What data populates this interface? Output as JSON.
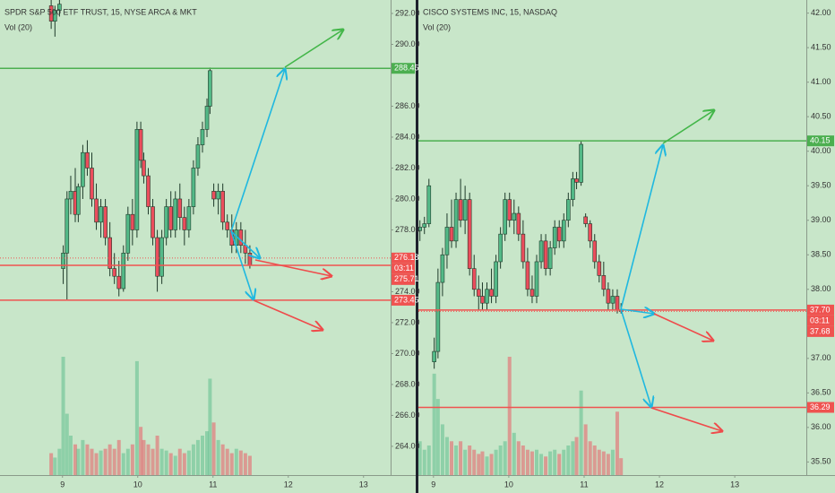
{
  "chart_data": [
    {
      "type": "candlestick",
      "title": "SPDR S&P 500 ETF TRUST, 15, NYSE ARCA & MKT",
      "subtitle": "Vol (20)",
      "x": [
        8.85,
        8.9,
        8.96,
        9.01,
        9.06,
        9.11,
        9.17,
        9.21,
        9.27,
        9.33,
        9.39,
        9.45,
        9.51,
        9.57,
        9.63,
        9.69,
        9.75,
        9.81,
        9.87,
        9.93,
        9.99,
        10.04,
        10.08,
        10.14,
        10.2,
        10.26,
        10.32,
        10.38,
        10.44,
        10.5,
        10.56,
        10.62,
        10.68,
        10.74,
        10.8,
        10.86,
        10.92,
        10.96,
        11.01,
        11.07,
        11.13,
        11.19,
        11.25,
        11.31,
        11.37,
        11.43,
        11.49
      ],
      "open": [
        292.5,
        291.5,
        292.2,
        275.5,
        276.5,
        280,
        280.5,
        279,
        280.8,
        283,
        282,
        280,
        278.5,
        279.5,
        277.5,
        275.5,
        275,
        274.2,
        276.5,
        279,
        278,
        284.5,
        282.5,
        281.5,
        279.5,
        277.5,
        275,
        277.5,
        279.5,
        278,
        280,
        278.8,
        278,
        279.5,
        282,
        283.5,
        284.5,
        286,
        280.5,
        280,
        280.5,
        278.5,
        278,
        277,
        278,
        277,
        276.5
      ],
      "high": [
        293,
        292.5,
        293,
        277,
        280.5,
        281.5,
        282,
        281,
        283.5,
        283.8,
        283,
        281,
        280,
        280,
        278.5,
        276.5,
        276,
        277,
        279.5,
        280,
        285,
        285,
        283,
        282,
        280,
        278,
        278,
        280,
        280.5,
        280.5,
        281,
        279.5,
        280,
        282.5,
        284,
        285,
        286.5,
        288.5,
        281,
        281,
        281,
        279,
        279,
        278.5,
        278.5,
        278,
        277
      ],
      "low": [
        291,
        290.5,
        291.8,
        274.5,
        273.5,
        279,
        278.5,
        278.5,
        280,
        281.5,
        279.5,
        278,
        277.5,
        277,
        275,
        274.5,
        273.7,
        274,
        276,
        277,
        277.5,
        282,
        281,
        279,
        277,
        274,
        274.5,
        277,
        277.5,
        277.5,
        278,
        277,
        277.5,
        279,
        281.5,
        283,
        284,
        285.5,
        279.5,
        279,
        278,
        277.5,
        276.5,
        276.5,
        276.5,
        275.8,
        275.5
      ],
      "close": [
        291.5,
        292.2,
        292.6,
        276.5,
        280,
        280.5,
        279,
        280.8,
        283,
        282,
        280,
        278.5,
        279.5,
        277.5,
        275.5,
        275,
        274.2,
        276.5,
        279,
        278,
        284.5,
        282.5,
        281.5,
        279.5,
        277.5,
        275,
        277.5,
        279.5,
        278,
        280,
        278.8,
        278,
        279.5,
        282,
        283.5,
        284.5,
        286,
        288.3,
        280,
        280.5,
        278.5,
        278,
        277,
        278,
        277,
        276.5,
        275.7
      ],
      "volume": [
        25,
        20,
        30,
        135,
        70,
        45,
        35,
        30,
        40,
        35,
        30,
        25,
        28,
        30,
        35,
        30,
        40,
        25,
        30,
        35,
        130,
        55,
        40,
        35,
        30,
        45,
        30,
        28,
        25,
        22,
        30,
        25,
        28,
        35,
        40,
        45,
        50,
        110,
        60,
        40,
        35,
        30,
        25,
        30,
        28,
        25,
        22
      ],
      "xlim": [
        8.17,
        13.36
      ],
      "xticks": [
        9,
        10,
        11,
        12,
        13
      ],
      "ylim": [
        262.14,
        292.87
      ],
      "yticks": [
        {
          "value": 264,
          "label": "264.00"
        },
        {
          "value": 266,
          "label": "266.00"
        },
        {
          "value": 268,
          "label": "268.00"
        },
        {
          "value": 270,
          "label": "270.00"
        },
        {
          "value": 272,
          "label": "272.00"
        },
        {
          "value": 274,
          "label": "274.00"
        },
        {
          "value": 278,
          "label": "278.00"
        },
        {
          "value": 280,
          "label": "280.00"
        },
        {
          "value": 282,
          "label": "282.00"
        },
        {
          "value": 284,
          "label": "284.00"
        },
        {
          "value": 286,
          "label": "286.00"
        },
        {
          "value": 290,
          "label": "290.00"
        },
        {
          "value": 292,
          "label": "292.00"
        }
      ],
      "levels": [
        {
          "value": 288.45,
          "label": "288.45",
          "color": "#4caf50",
          "style": "solid"
        },
        {
          "value": 276.18,
          "label": "276.18",
          "color": "#ef5350",
          "style": "dotted"
        },
        {
          "value": 275.71,
          "label": "275.71",
          "color": "#ef5350",
          "style": "solid"
        },
        {
          "value": 273.45,
          "label": "273.45",
          "color": "#ef5350",
          "style": "solid"
        }
      ],
      "countdown": "03:11",
      "up_color": "#53b987",
      "down_color": "#eb4d5c"
    },
    {
      "type": "candlestick",
      "title": "CISCO SYSTEMS INC, 15, NASDAQ",
      "subtitle": "Vol (20)",
      "x": [
        8.82,
        8.88,
        8.94,
        9.01,
        9.06,
        9.12,
        9.18,
        9.24,
        9.3,
        9.36,
        9.42,
        9.48,
        9.54,
        9.6,
        9.65,
        9.71,
        9.77,
        9.83,
        9.89,
        9.95,
        10.01,
        10.07,
        10.13,
        10.19,
        10.25,
        10.31,
        10.37,
        10.43,
        10.49,
        10.55,
        10.61,
        10.67,
        10.73,
        10.79,
        10.85,
        10.9,
        10.96,
        11.02,
        11.08,
        11.14,
        11.2,
        11.26,
        11.32,
        11.38,
        11.44,
        11.49
      ],
      "open": [
        38.85,
        38.9,
        38.95,
        36.95,
        37.1,
        38.1,
        38.5,
        38.9,
        38.7,
        39.3,
        39.0,
        39.3,
        38.3,
        38.0,
        37.9,
        37.8,
        38.0,
        37.9,
        38.4,
        38.8,
        39.3,
        39.0,
        39.1,
        38.8,
        38.4,
        38.0,
        37.9,
        38.4,
        38.7,
        38.3,
        38.6,
        38.9,
        38.7,
        39.0,
        39.3,
        39.6,
        39.55,
        39.05,
        38.95,
        38.7,
        38.4,
        38.2,
        38.0,
        37.8,
        37.9,
        37.7
      ],
      "high": [
        39.0,
        39.05,
        39.6,
        37.3,
        38.3,
        38.6,
        39.1,
        39.3,
        39.4,
        39.6,
        39.5,
        39.4,
        38.5,
        38.2,
        38.1,
        38.1,
        38.3,
        38.5,
        38.9,
        39.4,
        39.4,
        39.3,
        39.2,
        39.0,
        38.6,
        38.2,
        38.5,
        38.8,
        38.8,
        38.7,
        39.0,
        39.0,
        39.1,
        39.4,
        39.7,
        39.7,
        40.15,
        39.1,
        39.0,
        38.8,
        38.5,
        38.4,
        38.1,
        38.0,
        38.0,
        37.8
      ],
      "low": [
        38.7,
        38.8,
        38.9,
        36.85,
        37.0,
        37.9,
        38.3,
        38.6,
        38.6,
        38.9,
        38.8,
        38.2,
        37.9,
        37.7,
        37.7,
        37.7,
        37.8,
        37.8,
        38.3,
        38.7,
        38.9,
        38.8,
        38.7,
        38.3,
        37.9,
        37.8,
        37.8,
        38.3,
        38.2,
        38.2,
        38.5,
        38.6,
        38.6,
        38.9,
        39.2,
        39.45,
        39.5,
        38.9,
        38.6,
        38.3,
        38.1,
        37.9,
        37.7,
        37.7,
        37.65,
        37.65
      ],
      "close": [
        38.9,
        38.95,
        39.5,
        37.1,
        38.1,
        38.5,
        38.9,
        38.7,
        39.3,
        39.0,
        39.3,
        38.3,
        38.0,
        37.9,
        37.8,
        38.0,
        37.9,
        38.4,
        38.8,
        39.3,
        39.0,
        39.1,
        38.8,
        38.4,
        38.0,
        37.9,
        38.4,
        38.7,
        38.3,
        38.6,
        38.9,
        38.7,
        39.0,
        39.3,
        39.6,
        39.55,
        40.1,
        38.95,
        38.7,
        38.4,
        38.2,
        38.0,
        37.8,
        37.9,
        37.7,
        37.68
      ],
      "volume": [
        40,
        30,
        35,
        120,
        90,
        60,
        45,
        40,
        35,
        40,
        30,
        35,
        30,
        25,
        28,
        22,
        25,
        30,
        35,
        40,
        140,
        50,
        40,
        35,
        30,
        28,
        30,
        25,
        22,
        28,
        30,
        25,
        30,
        35,
        40,
        45,
        100,
        60,
        40,
        35,
        30,
        28,
        25,
        30,
        75,
        20
      ],
      "xlim": [
        8.8,
        13.95
      ],
      "xticks": [
        9,
        10,
        11,
        12,
        13
      ],
      "ylim": [
        35.31,
        42.19
      ],
      "yticks": [
        {
          "value": 35.5,
          "label": "35.50"
        },
        {
          "value": 36,
          "label": "36.00"
        },
        {
          "value": 36.5,
          "label": "36.50"
        },
        {
          "value": 37,
          "label": "37.00"
        },
        {
          "value": 38,
          "label": "38.00"
        },
        {
          "value": 38.5,
          "label": "38.50"
        },
        {
          "value": 39,
          "label": "39.00"
        },
        {
          "value": 39.5,
          "label": "39.50"
        },
        {
          "value": 40,
          "label": "40.00"
        },
        {
          "value": 40.5,
          "label": "40.50"
        },
        {
          "value": 41,
          "label": "41.00"
        },
        {
          "value": 41.5,
          "label": "41.50"
        },
        {
          "value": 42,
          "label": "42.00"
        }
      ],
      "levels": [
        {
          "value": 40.15,
          "label": "40.15",
          "color": "#4caf50",
          "style": "solid"
        },
        {
          "value": 37.7,
          "label": "37.70",
          "color": "#ef5350",
          "style": "solid"
        },
        {
          "value": 37.68,
          "label": "37.68",
          "color": "#ef5350",
          "style": "dotted"
        },
        {
          "value": 36.29,
          "label": "36.29",
          "color": "#ef5350",
          "style": "solid"
        }
      ],
      "countdown": "03:11",
      "up_color": "#53b987",
      "down_color": "#eb4d5c"
    }
  ]
}
